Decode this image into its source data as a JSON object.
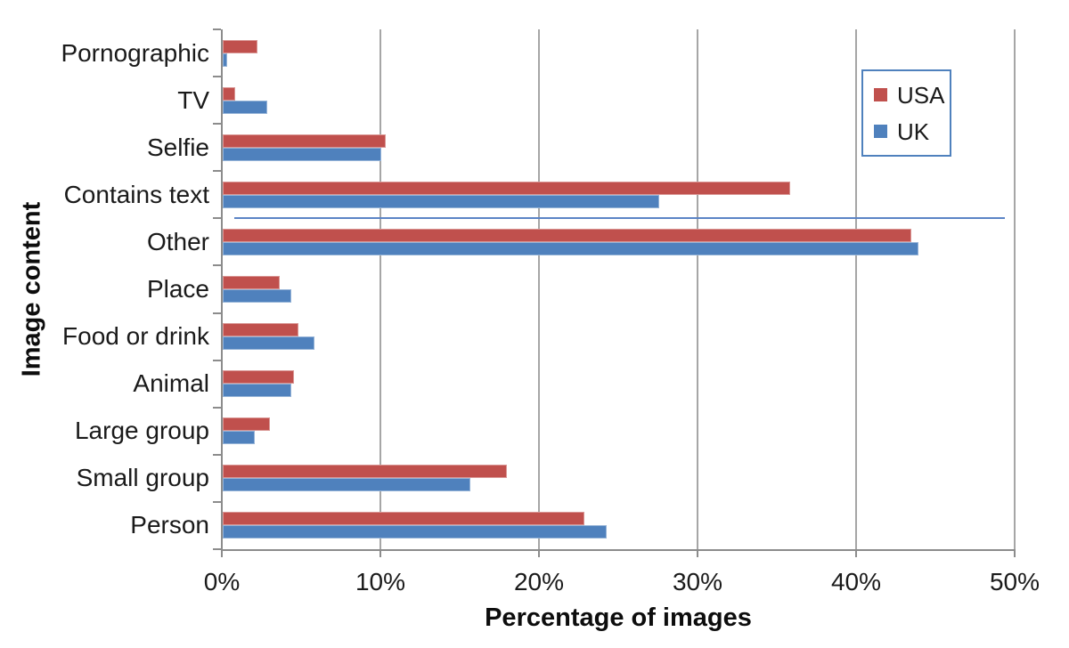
{
  "chart_data": {
    "type": "bar",
    "orientation": "horizontal",
    "title": "",
    "xlabel": "Percentage of images",
    "ylabel": "Image content",
    "categories": [
      "Pornographic",
      "TV",
      "Selfie",
      "Contains text",
      "Other",
      "Place",
      "Food or drink",
      "Animal",
      "Large group",
      "Small group",
      "Person"
    ],
    "series": [
      {
        "name": "USA",
        "color": "#C0504D",
        "border_color": "#D99694",
        "values": [
          2.2,
          0.8,
          10.3,
          35.8,
          43.4,
          3.6,
          4.8,
          4.5,
          3.0,
          17.9,
          22.8
        ]
      },
      {
        "name": "UK",
        "color": "#4F81BD",
        "border_color": "#95B3D7",
        "values": [
          0.3,
          2.8,
          10.0,
          27.5,
          43.9,
          4.3,
          5.8,
          4.3,
          2.0,
          15.6,
          24.2
        ]
      }
    ],
    "xlim": [
      0,
      50
    ],
    "x_tick_labels": [
      "0%",
      "10%",
      "20%",
      "30%",
      "40%",
      "50%"
    ],
    "x_tick_values": [
      0,
      10,
      20,
      30,
      40,
      50
    ],
    "grid": true,
    "legend_position": "upper-right",
    "artifact_line": {
      "description": "stray thin blue line between Contains text and Other rows",
      "start_pct": 0.8,
      "end_pct": 49.4,
      "color": "#5B84C6"
    }
  },
  "colors": {
    "axis": "#8C8C8C",
    "gridline": "#A6A6A6",
    "text": "#1a1a1a",
    "legend_border": "#4F81BD",
    "background": "#ffffff"
  }
}
